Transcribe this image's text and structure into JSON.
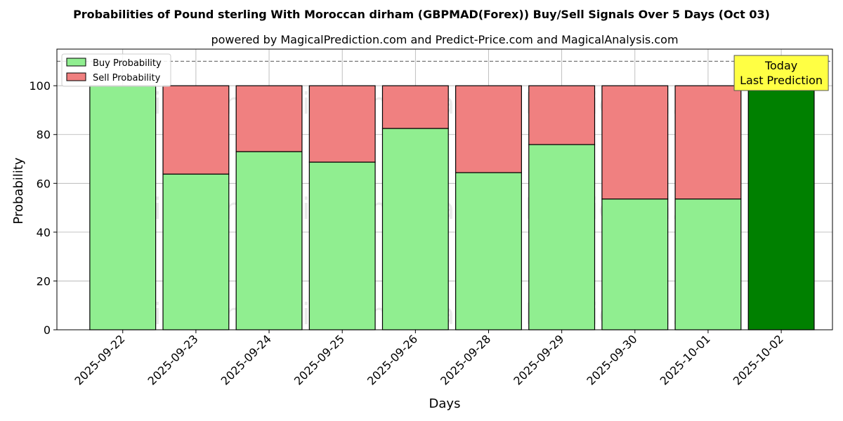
{
  "chart_data": {
    "type": "bar",
    "stacked": true,
    "title": "Probabilities of Pound sterling With Moroccan dirham (GBPMAD(Forex)) Buy/Sell Signals Over 5 Days (Oct 03)",
    "subtitle": "powered by MagicalPrediction.com and Predict-Price.com and MagicalAnalysis.com",
    "xlabel": "Days",
    "ylabel": "Probability",
    "ylim": [
      0,
      115
    ],
    "yticks": [
      0,
      20,
      40,
      60,
      80,
      100
    ],
    "grid": true,
    "reference_line": 110,
    "categories": [
      "2025-09-22",
      "2025-09-23",
      "2025-09-24",
      "2025-09-25",
      "2025-09-26",
      "2025-09-28",
      "2025-09-29",
      "2025-09-30",
      "2025-10-01",
      "2025-10-02"
    ],
    "series": [
      {
        "name": "Buy Probability",
        "color": "#90ee90",
        "values": [
          100,
          63.8,
          73.0,
          68.7,
          82.5,
          64.4,
          75.9,
          53.6,
          53.6,
          100
        ]
      },
      {
        "name": "Sell Probability",
        "color": "#f08080",
        "values": [
          0,
          36.2,
          27.0,
          31.3,
          17.5,
          35.6,
          24.1,
          46.4,
          46.4,
          0
        ]
      }
    ],
    "highlight": {
      "index": 9,
      "color": "#008000"
    },
    "legend_position": "top-left",
    "annotation": {
      "lines": [
        "Today",
        "Last Prediction"
      ],
      "background": "#ffff44"
    },
    "watermarks": [
      "MagicalAnalysis.com",
      "MagicalPrediction.com"
    ]
  }
}
